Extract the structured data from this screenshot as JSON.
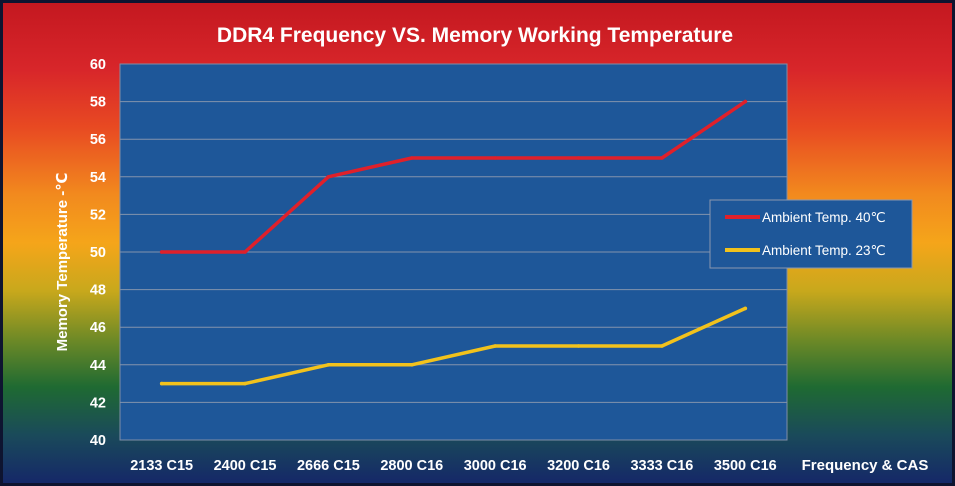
{
  "chart_data": {
    "type": "line",
    "title": "DDR4 Frequency VS. Memory Working Temperature",
    "xlabel": "Frequency & CAS",
    "ylabel": "Memory Temperature  -℃",
    "categories": [
      "2133 C15",
      "2400 C15",
      "2666 C15",
      "2800 C16",
      "3000 C16",
      "3200 C16",
      "3333 C16",
      "3500 C16"
    ],
    "ylim": [
      40,
      60
    ],
    "yticks": [
      40,
      42,
      44,
      46,
      48,
      50,
      52,
      54,
      56,
      58,
      60
    ],
    "grid": true,
    "legend_position": "right",
    "series": [
      {
        "name": "Ambient Temp. 40℃",
        "color": "#e0202a",
        "values": [
          50,
          50,
          54,
          55,
          55,
          55,
          55,
          58
        ]
      },
      {
        "name": "Ambient Temp. 23℃",
        "color": "#f2c21c",
        "values": [
          43,
          43,
          44,
          44,
          45,
          45,
          45,
          47
        ]
      }
    ],
    "colors": {
      "plot_background": "#1e5799",
      "legend_background": "#1e5799",
      "text": "#ffffff"
    }
  }
}
